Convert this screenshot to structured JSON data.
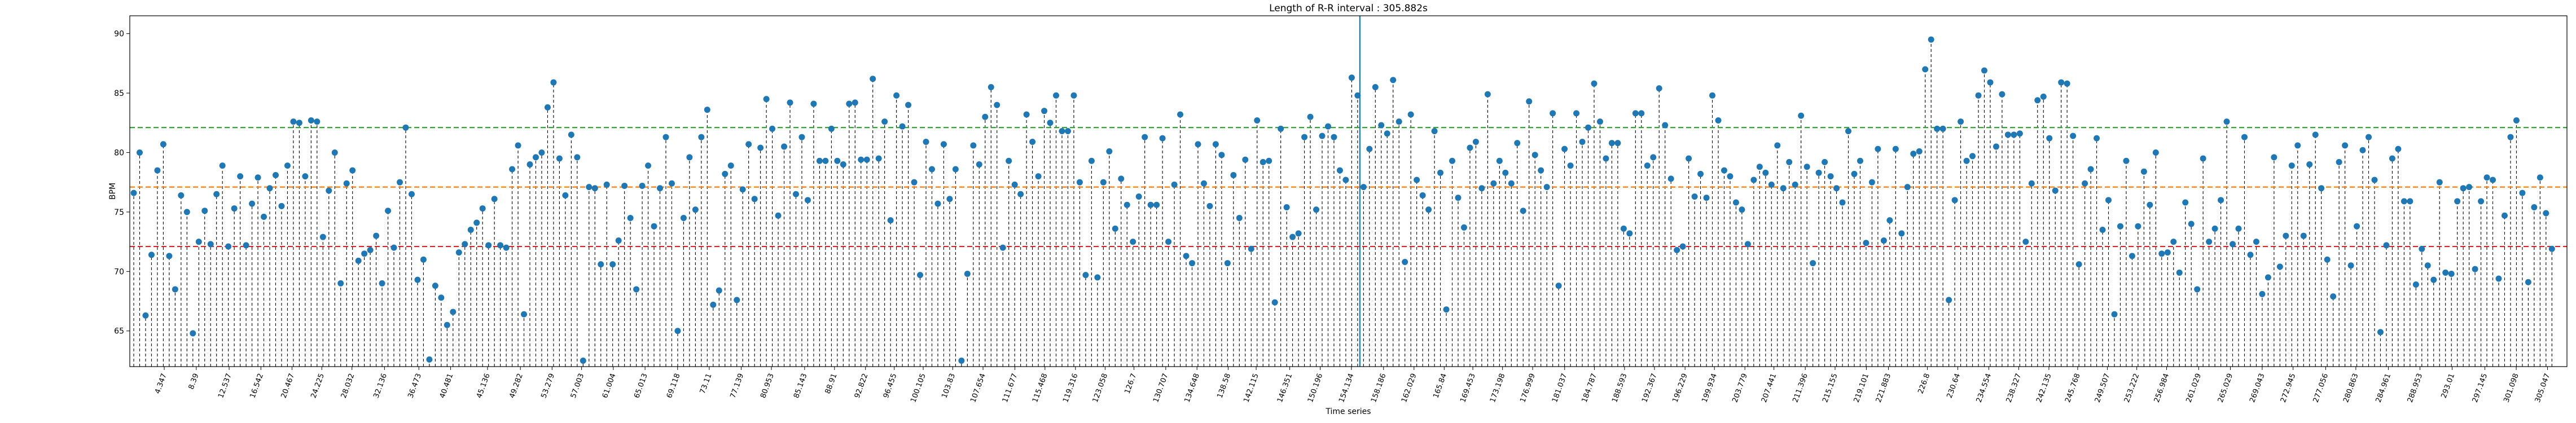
{
  "chart_data": {
    "type": "stem",
    "title": "Length of R-R interval : 305.882s",
    "xlabel": "Time series",
    "ylabel": "BPM",
    "xlim": [
      0,
      307.5
    ],
    "ylim": [
      62,
      91.5
    ],
    "yticks": [
      65,
      70,
      75,
      80,
      85,
      90
    ],
    "xtick_labels": [
      "4.347",
      "8.39",
      "12.537",
      "16.542",
      "20.467",
      "24.225",
      "28.032",
      "32.136",
      "36.473",
      "40.481",
      "45.136",
      "49.282",
      "53.279",
      "57.003",
      "61.004",
      "65.013",
      "69.118",
      "73.11",
      "77.139",
      "80.953",
      "85.143",
      "88.91",
      "92.822",
      "96.455",
      "100.105",
      "103.83",
      "107.654",
      "111.677",
      "115.468",
      "119.316",
      "123.058",
      "126.7",
      "130.707",
      "134.648",
      "138.58",
      "142.115",
      "146.351",
      "150.196",
      "154.134",
      "158.186",
      "162.029",
      "165.84",
      "169.453",
      "173.198",
      "176.999",
      "181.037",
      "184.787",
      "188.593",
      "192.367",
      "196.229",
      "199.934",
      "203.779",
      "207.441",
      "211.396",
      "215.155",
      "219.101",
      "221.883",
      "226.8",
      "230.64",
      "234.554",
      "238.327",
      "242.135",
      "245.768",
      "249.507",
      "253.222",
      "256.984",
      "261.029",
      "265.029",
      "269.043",
      "272.945",
      "277.056",
      "280.863",
      "284.961",
      "288.953",
      "293.01",
      "297.145",
      "301.098",
      "305.047"
    ],
    "xticks": [
      4.347,
      8.39,
      12.537,
      16.542,
      20.467,
      24.225,
      28.032,
      32.136,
      36.473,
      40.481,
      45.136,
      49.282,
      53.279,
      57.003,
      61.004,
      65.013,
      69.118,
      73.11,
      77.139,
      80.953,
      85.143,
      88.91,
      92.822,
      96.455,
      100.105,
      103.83,
      107.654,
      111.677,
      115.468,
      119.316,
      123.058,
      126.7,
      130.707,
      134.648,
      138.58,
      142.115,
      146.351,
      150.196,
      154.134,
      158.186,
      162.029,
      165.84,
      169.453,
      173.198,
      176.999,
      181.037,
      184.787,
      188.593,
      192.367,
      196.229,
      199.934,
      203.779,
      207.441,
      211.396,
      215.155,
      219.101,
      221.883,
      226.8,
      230.64,
      234.554,
      238.327,
      242.135,
      245.768,
      249.507,
      253.222,
      256.984,
      261.029,
      265.029,
      269.043,
      272.945,
      277.056,
      280.863,
      284.961,
      288.953,
      293.01,
      297.145,
      301.098,
      305.047
    ],
    "hlines": [
      {
        "y": 82.1,
        "color": "#2ca02c",
        "style": "dashed"
      },
      {
        "y": 77.1,
        "color": "#ff7f0e",
        "style": "dashed"
      },
      {
        "y": 72.1,
        "color": "#d62728",
        "style": "dashed"
      }
    ],
    "vline": {
      "x": 155.2,
      "color": "#1f77b4"
    },
    "marker_color": "#1f77b4",
    "stem_color": "#000000",
    "bpm": [
      76.6,
      80.0,
      66.3,
      71.4,
      78.5,
      80.7,
      71.3,
      68.5,
      76.4,
      75.0,
      64.8,
      72.5,
      75.1,
      72.3,
      76.5,
      78.9,
      72.1,
      75.3,
      78.0,
      72.2,
      75.7,
      77.9,
      74.6,
      77.0,
      78.1,
      75.5,
      78.9,
      82.6,
      82.5,
      78.0,
      82.7,
      82.6,
      72.9,
      76.8,
      80.0,
      69.0,
      77.4,
      78.5,
      70.9,
      71.5,
      71.8,
      73.0,
      69.0,
      75.1,
      72.0,
      77.5,
      82.1,
      76.5,
      69.3,
      71.0,
      62.6,
      68.8,
      67.8,
      65.5,
      66.6,
      71.6,
      72.3,
      73.5,
      74.1,
      75.3,
      72.2,
      76.1,
      72.2,
      72.0,
      78.6,
      80.6,
      66.4,
      79.0,
      79.6,
      80.0,
      83.8,
      85.9,
      79.5,
      76.4,
      81.5,
      79.6,
      62.5,
      77.1,
      77.0,
      70.6,
      77.3,
      70.6,
      72.6,
      77.2,
      74.5,
      68.5,
      77.2,
      78.9,
      73.8,
      77.0,
      81.3,
      77.4,
      65.0,
      74.5,
      79.6,
      75.2,
      81.3,
      83.6,
      67.2,
      68.4,
      78.2,
      78.9,
      67.6,
      76.9,
      80.7,
      76.1,
      80.4,
      84.5,
      82.0,
      74.7,
      80.5,
      84.2,
      76.5,
      81.3,
      76.0,
      84.1,
      79.3,
      79.3,
      82.0,
      79.3,
      79.0,
      84.1,
      84.2,
      79.4,
      79.4,
      86.2,
      79.5,
      82.6,
      74.3,
      84.8,
      82.2,
      84.0,
      77.5,
      69.7,
      80.9,
      78.6,
      75.7,
      80.7,
      76.1,
      78.6,
      62.5,
      69.8,
      80.6,
      79.0,
      83.0,
      85.5,
      84.0,
      72.0,
      79.3,
      77.3,
      76.5,
      83.2,
      80.9,
      78.0,
      83.5,
      82.5,
      84.8,
      81.8,
      81.8,
      84.8,
      77.5,
      69.7,
      79.3,
      69.5,
      77.5,
      80.1,
      73.6,
      77.8,
      75.6,
      72.5,
      76.3,
      81.3,
      75.6,
      75.6,
      81.2,
      72.5,
      77.3,
      83.2,
      71.3,
      70.7,
      80.7,
      77.4,
      75.5,
      80.7,
      79.8,
      70.7,
      78.1,
      74.5,
      79.4,
      71.9,
      82.7,
      79.2,
      79.3,
      67.4,
      82.0,
      75.4,
      72.9,
      73.2,
      81.3,
      83.0,
      75.2,
      81.4,
      82.2,
      81.3,
      78.5,
      77.7,
      86.3,
      84.8,
      77.1,
      80.3,
      85.5,
      82.3,
      81.6,
      86.1,
      82.6,
      70.8,
      83.2,
      77.7,
      76.4,
      75.2,
      81.8,
      78.3,
      66.8,
      79.3,
      76.2,
      73.7,
      80.4,
      80.9,
      77.0,
      84.9,
      77.4,
      79.3,
      78.3,
      77.4,
      80.8,
      75.1,
      84.3,
      79.8,
      78.5,
      77.1,
      83.3,
      68.8,
      80.3,
      78.9,
      83.3,
      80.9,
      82.1,
      85.8,
      82.6,
      79.5,
      80.8,
      80.8,
      73.6,
      73.2,
      83.3,
      83.3,
      78.9,
      79.6,
      85.4,
      82.3,
      77.8,
      71.8,
      72.1,
      79.5,
      76.3,
      78.2,
      76.2,
      84.8,
      82.7,
      78.5,
      78.0,
      75.8,
      75.2,
      72.3,
      77.7,
      78.8,
      78.3,
      77.3,
      80.6,
      77.0,
      79.2,
      77.3,
      83.1,
      78.8,
      70.7,
      78.3,
      79.2,
      78.0,
      77.0,
      75.8,
      81.8,
      78.2,
      79.3,
      72.4,
      77.5,
      80.3,
      72.6,
      74.3,
      80.3,
      73.2,
      77.1,
      79.9,
      80.1,
      87.0,
      89.5,
      82.0,
      82.0,
      67.6,
      76.0,
      82.6,
      79.3,
      79.7,
      84.8,
      86.9,
      85.9,
      80.5,
      84.9,
      81.5,
      81.5,
      81.6,
      72.5,
      77.4,
      84.4,
      84.7,
      81.2,
      76.8,
      85.9,
      85.8,
      81.4,
      70.6,
      77.4,
      78.6,
      81.2,
      73.5,
      76.0,
      66.4,
      73.8,
      79.3,
      71.3,
      73.8,
      78.4,
      75.6,
      80.0,
      71.5,
      71.6,
      72.5,
      69.9,
      75.8,
      74.0,
      68.5,
      79.5,
      72.5,
      73.6,
      76.0,
      82.6,
      72.3,
      73.6,
      81.3,
      71.4,
      72.5,
      68.1,
      69.5,
      79.6,
      70.4,
      73.0,
      78.9,
      80.6,
      73.0,
      79.0,
      81.5,
      77.0,
      71.0,
      67.9,
      79.2,
      80.6,
      70.5,
      73.8,
      80.2,
      81.3,
      77.7,
      64.9,
      72.2,
      79.5,
      80.3,
      75.9,
      75.9,
      68.9,
      71.9,
      70.5,
      69.3,
      77.5,
      69.9,
      69.8,
      75.9,
      77.0,
      77.1,
      70.2,
      75.9,
      77.9,
      77.7,
      69.4,
      74.7,
      81.3,
      82.7,
      76.6,
      69.1,
      75.4,
      77.9,
      74.9,
      71.9
    ]
  }
}
